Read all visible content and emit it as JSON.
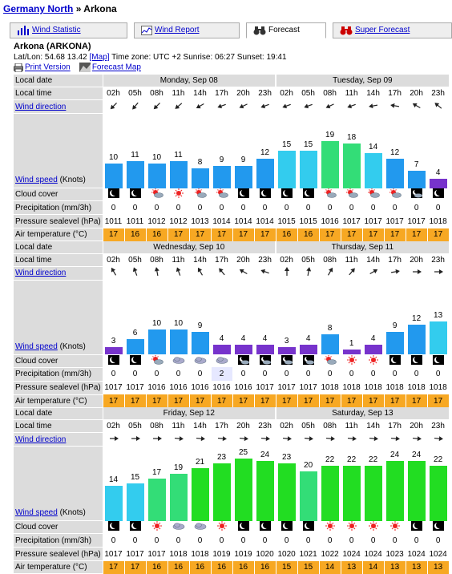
{
  "breadcrumb": {
    "parent": "Germany North",
    "sep": "»",
    "current": "Arkona"
  },
  "tabs": [
    {
      "label": "Wind Statistic",
      "active": false,
      "icon": "bar-chart-icon"
    },
    {
      "label": "Wind Report",
      "active": false,
      "icon": "line-chart-icon"
    },
    {
      "label": "Forecast",
      "active": true,
      "icon": "binoculars-icon"
    },
    {
      "label": "Super Forecast",
      "active": false,
      "icon": "binoculars-red-icon"
    }
  ],
  "location": {
    "name": "Arkona (ARKONA)",
    "latlon_label": "Lat/Lon: 54.68 13.42",
    "map_link": "[Map]",
    "info": "Time zone: UTC +2 Sunrise: 06:27 Sunset: 19:41"
  },
  "links": {
    "print": "Print Version",
    "forecast_map": "Forecast Map"
  },
  "labels": {
    "local_date": "Local date",
    "local_time": "Local time",
    "wind_direction": "Wind direction",
    "wind_speed": "Wind speed",
    "wind_unit": " (Knots)",
    "cloud_cover": "Cloud cover",
    "precipitation": "Precipitation (mm/3h)",
    "pressure": "Pressure sealevel (hPa)",
    "temperature": "Air temperature (°C)"
  },
  "times": [
    "02h",
    "05h",
    "08h",
    "11h",
    "14h",
    "17h",
    "20h",
    "23h"
  ],
  "blocks": [
    {
      "days": [
        "Monday, Sep 08",
        "Tuesday, Sep 09"
      ],
      "dir": [
        225,
        220,
        225,
        230,
        240,
        250,
        245,
        250,
        250,
        250,
        245,
        250,
        260,
        280,
        300,
        310
      ],
      "speed": [
        10,
        11,
        10,
        11,
        8,
        9,
        9,
        12,
        15,
        15,
        19,
        18,
        14,
        12,
        7,
        4
      ],
      "cloud": [
        "moon",
        "moon",
        "sun-cloud",
        "sun",
        "sun-cloud",
        "sun-cloud",
        "moon",
        "moon",
        "moon",
        "moon",
        "sun-cloud",
        "sun-cloud",
        "sun-cloud",
        "sun-cloud",
        "moon-cloud",
        "moon"
      ],
      "precip": [
        "0",
        "0",
        "0",
        "0",
        "0",
        "0",
        "0",
        "0",
        "0",
        "0",
        "0",
        "0",
        "0",
        "0",
        "0",
        "0"
      ],
      "pressure": [
        "1011",
        "1011",
        "1012",
        "1012",
        "1013",
        "1014",
        "1014",
        "1014",
        "1015",
        "1015",
        "1016",
        "1017",
        "1017",
        "1017",
        "1017",
        "1018"
      ],
      "temp": [
        "17",
        "16",
        "16",
        "17",
        "17",
        "17",
        "17",
        "17",
        "16",
        "16",
        "17",
        "17",
        "17",
        "17",
        "17",
        "17"
      ]
    },
    {
      "days": [
        "Wednesday, Sep 10",
        "Thursday, Sep 11"
      ],
      "dir": [
        330,
        340,
        350,
        340,
        330,
        320,
        300,
        290,
        0,
        10,
        30,
        40,
        60,
        80,
        90,
        90
      ],
      "speed": [
        3,
        6,
        10,
        10,
        9,
        4,
        4,
        4,
        3,
        4,
        8,
        1,
        4,
        9,
        12,
        13
      ],
      "cloud": [
        "moon",
        "moon",
        "sun-cloud",
        "cloud",
        "cloud",
        "cloud",
        "moon-cloud",
        "moon-cloud",
        "moon-cloud",
        "moon-cloud",
        "sun-cloud",
        "sun",
        "sun",
        "moon",
        "moon",
        "moon"
      ],
      "precip": [
        "0",
        "0",
        "0",
        "0",
        "0",
        "2",
        "0",
        "0",
        "0",
        "0",
        "0",
        "0",
        "0",
        "0",
        "0",
        "0"
      ],
      "pressure": [
        "1017",
        "1017",
        "1016",
        "1016",
        "1016",
        "1016",
        "1016",
        "1017",
        "1017",
        "1017",
        "1018",
        "1018",
        "1018",
        "1018",
        "1018",
        "1018"
      ],
      "temp": [
        "17",
        "17",
        "17",
        "17",
        "17",
        "17",
        "17",
        "17",
        "17",
        "17",
        "17",
        "17",
        "17",
        "17",
        "17",
        "17"
      ]
    },
    {
      "days": [
        "Friday, Sep 12",
        "Saturday, Sep 13"
      ],
      "dir": [
        90,
        90,
        90,
        95,
        95,
        95,
        95,
        95,
        95,
        95,
        95,
        95,
        95,
        95,
        95,
        95
      ],
      "speed": [
        14,
        15,
        17,
        19,
        21,
        23,
        25,
        24,
        23,
        20,
        22,
        22,
        22,
        24,
        24,
        22
      ],
      "cloud": [
        "moon",
        "moon",
        "sun",
        "cloud",
        "cloud",
        "sun",
        "moon",
        "moon",
        "moon",
        "moon",
        "sun",
        "sun",
        "sun",
        "sun",
        "moon",
        "moon"
      ],
      "precip": [
        "0",
        "0",
        "0",
        "0",
        "0",
        "0",
        "0",
        "0",
        "0",
        "0",
        "0",
        "0",
        "0",
        "0",
        "0",
        "0"
      ],
      "pressure": [
        "1017",
        "1017",
        "1017",
        "1018",
        "1018",
        "1019",
        "1019",
        "1020",
        "1020",
        "1021",
        "1022",
        "1024",
        "1024",
        "1023",
        "1024",
        "1024"
      ],
      "temp": [
        "17",
        "17",
        "16",
        "16",
        "16",
        "16",
        "16",
        "16",
        "15",
        "15",
        "14",
        "13",
        "14",
        "13",
        "13",
        "13"
      ]
    }
  ],
  "colors": {
    "wind_low": "#2288ee",
    "wind_mid": "#33ccee",
    "wind_high": "#33dd55",
    "wind_strong": "#22dd22",
    "wind_calm": "#7733cc",
    "temp_cell": "#f7a823"
  }
}
